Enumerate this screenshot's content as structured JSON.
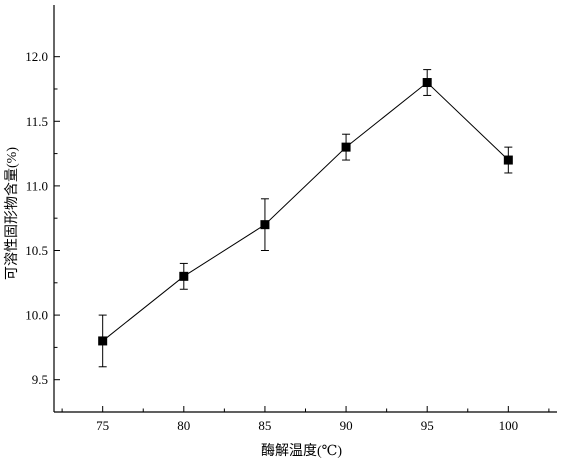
{
  "chart_data": {
    "type": "line",
    "title": "",
    "xlabel": "酶解温度(℃)",
    "ylabel": "可溶性固形物含量(%)",
    "x": [
      75,
      80,
      85,
      90,
      95,
      100
    ],
    "x_ticks": [
      "75",
      "80",
      "85",
      "90",
      "95",
      "100"
    ],
    "xlim": [
      72,
      103
    ],
    "ylim": [
      9.25,
      12.4
    ],
    "y_ticks": [
      "9.5",
      "10.0",
      "10.5",
      "11.0",
      "11.5",
      "12.0"
    ],
    "series": [
      {
        "values": [
          9.8,
          10.3,
          10.7,
          11.3,
          11.8,
          11.2
        ],
        "error": [
          0.2,
          0.1,
          0.2,
          0.1,
          0.1,
          0.1
        ]
      }
    ],
    "grid": false,
    "legend": "none",
    "colors": {
      "line": "#000000",
      "marker": "#000000",
      "axis": "#000000"
    }
  }
}
